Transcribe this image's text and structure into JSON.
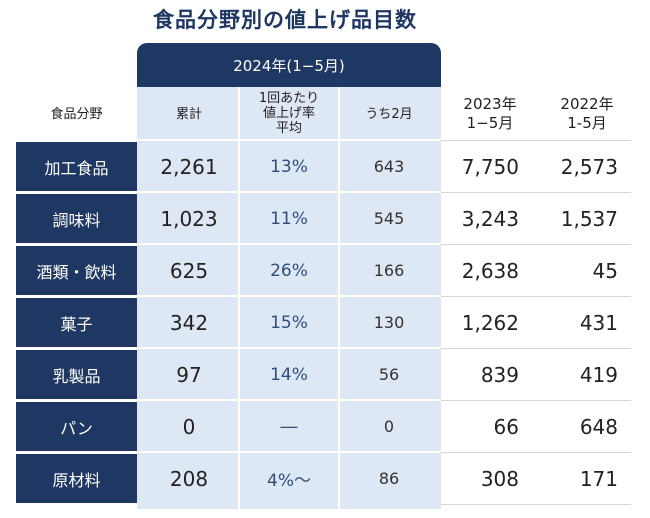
{
  "title": "食品分野別の値上げ品目数",
  "group_header": "2024年(1−5月)",
  "headers": {
    "category": "食品分野",
    "total": "累計",
    "rate_line1": "1回あたり",
    "rate_line2": "値上げ率",
    "rate_line3": "平均",
    "feb": "うち2月",
    "y2023_line1": "2023年",
    "y2023_line2": "1−5月",
    "y2022_line1": "2022年",
    "y2022_line2": "1-5月"
  },
  "rows": [
    {
      "category": "加工食品",
      "total": "2,261",
      "rate": "13%",
      "feb": "643",
      "y2023": "7,750",
      "y2022": "2,573"
    },
    {
      "category": "調味料",
      "total": "1,023",
      "rate": "11%",
      "feb": "545",
      "y2023": "3,243",
      "y2022": "1,537"
    },
    {
      "category": "酒類・飲料",
      "total": "625",
      "rate": "26%",
      "feb": "166",
      "y2023": "2,638",
      "y2022": "45"
    },
    {
      "category": "菓子",
      "total": "342",
      "rate": "15%",
      "feb": "130",
      "y2023": "1,262",
      "y2022": "431"
    },
    {
      "category": "乳製品",
      "total": "97",
      "rate": "14%",
      "feb": "56",
      "y2023": "839",
      "y2022": "419"
    },
    {
      "category": "パン",
      "total": "0",
      "rate": "―",
      "feb": "0",
      "y2023": "66",
      "y2022": "648"
    },
    {
      "category": "原材料",
      "total": "208",
      "rate": "4%〜",
      "feb": "86",
      "y2023": "308",
      "y2022": "171"
    }
  ],
  "colors": {
    "navy": "#1f3763",
    "light_blue": "#dde8f4"
  }
}
